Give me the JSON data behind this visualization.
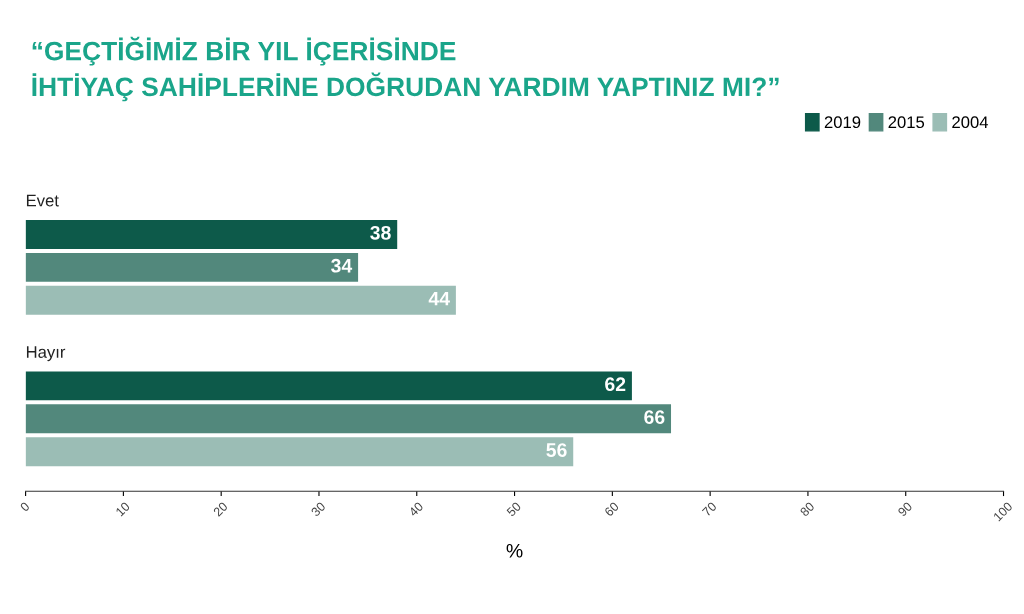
{
  "chart_data": {
    "type": "bar",
    "orientation": "horizontal",
    "title": "“GEÇTİĞİMİZ BİR YIL İÇERİSİNDE\nİHTİYAÇ SAHİPLERİNE DOĞRUDAN YARDIM YAPTINIZ MI?”",
    "categories": [
      "Evet",
      "Hayır"
    ],
    "series": [
      {
        "name": "2019",
        "color": "#0d5a4a",
        "values": [
          38,
          62
        ]
      },
      {
        "name": "2015",
        "color": "#52887c",
        "values": [
          34,
          66
        ]
      },
      {
        "name": "2004",
        "color": "#9bbdb5",
        "values": [
          44,
          56
        ]
      }
    ],
    "xlabel": "%",
    "xlim": [
      0,
      100
    ],
    "xticks": [
      0,
      10,
      20,
      30,
      40,
      50,
      60,
      70,
      80,
      90,
      100
    ],
    "data_labels": true,
    "legend": "top right",
    "grid": false
  }
}
